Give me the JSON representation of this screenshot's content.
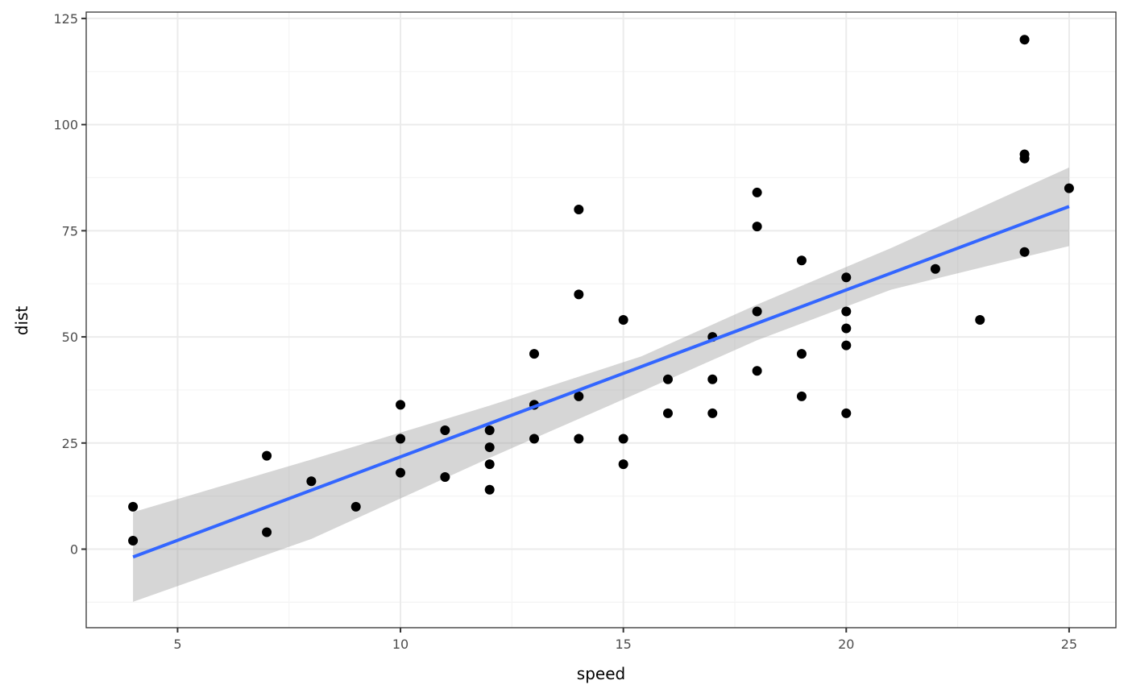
{
  "chart_data": {
    "type": "scatter",
    "title": "",
    "xlabel": "speed",
    "ylabel": "dist",
    "xlim": [
      2.95,
      26.05
    ],
    "ylim": [
      -18.5,
      126.5
    ],
    "x_ticks": [
      5,
      10,
      15,
      20,
      25
    ],
    "y_ticks": [
      0,
      25,
      50,
      75,
      100,
      125
    ],
    "x_minor": [
      7.5,
      12.5,
      17.5,
      22.5
    ],
    "y_minor": [
      -12.5,
      12.5,
      37.5,
      62.5,
      87.5,
      112.5
    ],
    "grid": true,
    "legend": null,
    "points": [
      [
        4,
        2
      ],
      [
        4,
        10
      ],
      [
        7,
        4
      ],
      [
        7,
        22
      ],
      [
        8,
        16
      ],
      [
        9,
        10
      ],
      [
        10,
        18
      ],
      [
        10,
        26
      ],
      [
        10,
        34
      ],
      [
        11,
        17
      ],
      [
        11,
        28
      ],
      [
        12,
        14
      ],
      [
        12,
        20
      ],
      [
        12,
        24
      ],
      [
        12,
        28
      ],
      [
        13,
        26
      ],
      [
        13,
        34
      ],
      [
        13,
        34
      ],
      [
        13,
        46
      ],
      [
        14,
        26
      ],
      [
        14,
        36
      ],
      [
        14,
        60
      ],
      [
        14,
        80
      ],
      [
        15,
        20
      ],
      [
        15,
        26
      ],
      [
        15,
        54
      ],
      [
        16,
        32
      ],
      [
        16,
        40
      ],
      [
        17,
        32
      ],
      [
        17,
        40
      ],
      [
        17,
        50
      ],
      [
        18,
        42
      ],
      [
        18,
        56
      ],
      [
        18,
        76
      ],
      [
        18,
        84
      ],
      [
        19,
        36
      ],
      [
        19,
        46
      ],
      [
        19,
        68
      ],
      [
        20,
        32
      ],
      [
        20,
        48
      ],
      [
        20,
        52
      ],
      [
        20,
        56
      ],
      [
        20,
        64
      ],
      [
        22,
        66
      ],
      [
        23,
        54
      ],
      [
        24,
        70
      ],
      [
        24,
        92
      ],
      [
        24,
        93
      ],
      [
        24,
        120
      ],
      [
        25,
        85
      ]
    ],
    "smooth": {
      "method": "lm",
      "intercept": -17.579,
      "slope": 3.932,
      "x_range": [
        4,
        25
      ],
      "ci_lower": [
        [
          4,
          -12.4
        ],
        [
          8,
          2.4
        ],
        [
          12,
          21.5
        ],
        [
          15.4,
          37.1
        ],
        [
          18,
          49.2
        ],
        [
          21,
          61.1
        ],
        [
          25,
          71.4
        ]
      ],
      "ci_upper": [
        [
          4,
          8.7
        ],
        [
          8,
          21.1
        ],
        [
          12,
          33.8
        ],
        [
          15.4,
          45.4
        ],
        [
          18,
          57.6
        ],
        [
          21,
          70.9
        ],
        [
          25,
          89.9
        ]
      ]
    },
    "colors": {
      "line": "#3366FF",
      "ribbon": "#999999",
      "ribbon_alpha": 0.4,
      "points": "#000000",
      "grid_major": "#EBEBEB",
      "grid_minor": "#F4F4F4",
      "panel_border": "#333333"
    }
  }
}
